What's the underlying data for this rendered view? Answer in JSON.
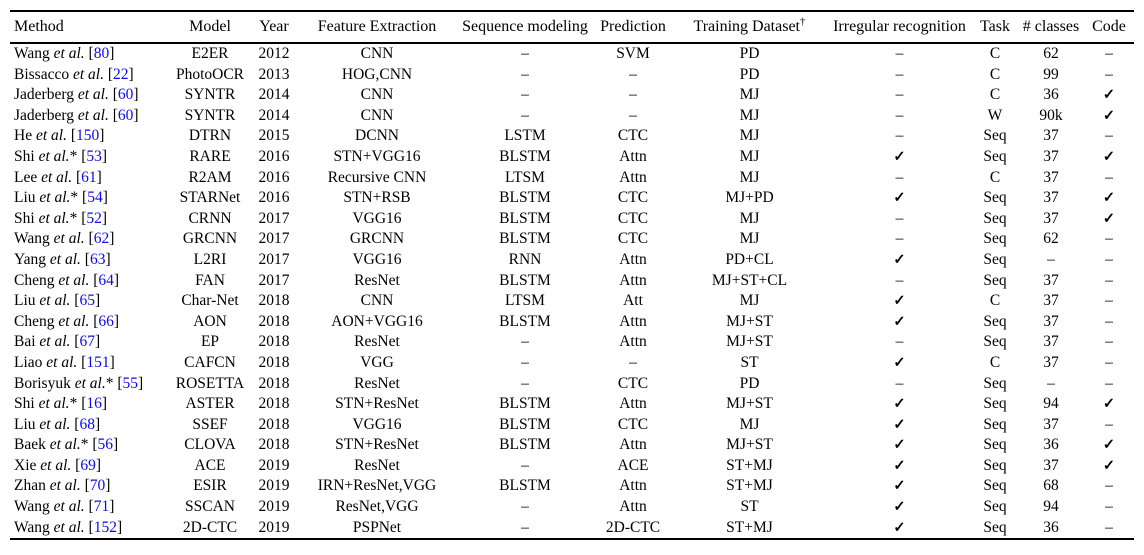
{
  "colors": {
    "citation": "#0b0beb",
    "text": "#000000",
    "rule": "#000000",
    "background": "#ffffff"
  },
  "table": {
    "etal_label": "et al.",
    "cite_open": "[",
    "cite_close": "]",
    "check_glyph": "✓",
    "dash_glyph": "–",
    "headers": [
      {
        "label": "Method"
      },
      {
        "label": "Model"
      },
      {
        "label": "Year"
      },
      {
        "label": "Feature Extraction"
      },
      {
        "label": "Sequence modeling"
      },
      {
        "label": "Prediction"
      },
      {
        "label": "Training Dataset",
        "sup": "†"
      },
      {
        "label": "Irregular recognition"
      },
      {
        "label": "Task"
      },
      {
        "label": "# classes"
      },
      {
        "label": "Code"
      }
    ],
    "rows": [
      {
        "author": "Wang",
        "star": "",
        "cite": "80",
        "model": "E2ER",
        "year": "2012",
        "feature": "CNN",
        "seq": "–",
        "pred": "SVM",
        "dataset": "PD",
        "irregular": "–",
        "task": "C",
        "classes": "62",
        "code": "–"
      },
      {
        "author": "Bissacco",
        "star": "",
        "cite": "22",
        "model": "PhotoOCR",
        "year": "2013",
        "feature": "HOG,CNN",
        "seq": "–",
        "pred": "–",
        "dataset": "PD",
        "irregular": "–",
        "task": "C",
        "classes": "99",
        "code": "–"
      },
      {
        "author": "Jaderberg",
        "star": "",
        "cite": "60",
        "model": "SYNTR",
        "year": "2014",
        "feature": "CNN",
        "seq": "–",
        "pred": "–",
        "dataset": "MJ",
        "irregular": "–",
        "task": "C",
        "classes": "36",
        "code": "✓"
      },
      {
        "author": "Jaderberg",
        "star": "",
        "cite": "60",
        "model": "SYNTR",
        "year": "2014",
        "feature": "CNN",
        "seq": "–",
        "pred": "–",
        "dataset": "MJ",
        "irregular": "–",
        "task": "W",
        "classes": "90k",
        "code": "✓"
      },
      {
        "author": "He",
        "star": "",
        "cite": "150",
        "model": "DTRN",
        "year": "2015",
        "feature": "DCNN",
        "seq": "LSTM",
        "pred": "CTC",
        "dataset": "MJ",
        "irregular": "–",
        "task": "Seq",
        "classes": "37",
        "code": "–"
      },
      {
        "author": "Shi",
        "star": "*",
        "cite": "53",
        "model": "RARE",
        "year": "2016",
        "feature": "STN+VGG16",
        "seq": "BLSTM",
        "pred": "Attn",
        "dataset": "MJ",
        "irregular": "✓",
        "task": "Seq",
        "classes": "37",
        "code": "✓"
      },
      {
        "author": "Lee",
        "star": "",
        "cite": "61",
        "model": "R2AM",
        "year": "2016",
        "feature": "Recursive CNN",
        "seq": "LTSM",
        "pred": "Attn",
        "dataset": "MJ",
        "irregular": "–",
        "task": "C",
        "classes": "37",
        "code": "–"
      },
      {
        "author": "Liu",
        "star": "*",
        "cite": "54",
        "model": "STARNet",
        "year": "2016",
        "feature": "STN+RSB",
        "seq": "BLSTM",
        "pred": "CTC",
        "dataset": "MJ+PD",
        "irregular": "✓",
        "task": "Seq",
        "classes": "37",
        "code": "✓"
      },
      {
        "author": "Shi",
        "star": "*",
        "cite": "52",
        "model": "CRNN",
        "year": "2017",
        "feature": "VGG16",
        "seq": "BLSTM",
        "pred": "CTC",
        "dataset": "MJ",
        "irregular": "–",
        "task": "Seq",
        "classes": "37",
        "code": "✓"
      },
      {
        "author": "Wang",
        "star": "",
        "cite": "62",
        "model": "GRCNN",
        "year": "2017",
        "feature": "GRCNN",
        "seq": "BLSTM",
        "pred": "CTC",
        "dataset": "MJ",
        "irregular": "–",
        "task": "Seq",
        "classes": "62",
        "code": "–"
      },
      {
        "author": "Yang",
        "star": "",
        "cite": "63",
        "model": "L2RI",
        "year": "2017",
        "feature": "VGG16",
        "seq": "RNN",
        "pred": "Attn",
        "dataset": "PD+CL",
        "irregular": "✓",
        "task": "Seq",
        "classes": "–",
        "code": "–"
      },
      {
        "author": "Cheng",
        "star": "",
        "cite": "64",
        "model": "FAN",
        "year": "2017",
        "feature": "ResNet",
        "seq": "BLSTM",
        "pred": "Attn",
        "dataset": "MJ+ST+CL",
        "irregular": "–",
        "task": "Seq",
        "classes": "37",
        "code": "–"
      },
      {
        "author": "Liu",
        "star": "",
        "cite": "65",
        "model": "Char-Net",
        "year": "2018",
        "feature": "CNN",
        "seq": "LTSM",
        "pred": "Att",
        "dataset": "MJ",
        "irregular": "✓",
        "task": "C",
        "classes": "37",
        "code": "–"
      },
      {
        "author": "Cheng",
        "star": "",
        "cite": "66",
        "model": "AON",
        "year": "2018",
        "feature": "AON+VGG16",
        "seq": "BLSTM",
        "pred": "Attn",
        "dataset": "MJ+ST",
        "irregular": "✓",
        "task": "Seq",
        "classes": "37",
        "code": "–"
      },
      {
        "author": "Bai",
        "star": "",
        "cite": "67",
        "model": "EP",
        "year": "2018",
        "feature": "ResNet",
        "seq": "–",
        "pred": "Attn",
        "dataset": "MJ+ST",
        "irregular": "–",
        "task": "Seq",
        "classes": "37",
        "code": "–"
      },
      {
        "author": "Liao",
        "star": "",
        "cite": "151",
        "model": "CAFCN",
        "year": "2018",
        "feature": "VGG",
        "seq": "–",
        "pred": "–",
        "dataset": "ST",
        "irregular": "✓",
        "task": "C",
        "classes": "37",
        "code": "–"
      },
      {
        "author": "Borisyuk",
        "star": "*",
        "cite": "55",
        "model": "ROSETTA",
        "year": "2018",
        "feature": "ResNet",
        "seq": "–",
        "pred": "CTC",
        "dataset": "PD",
        "irregular": "–",
        "task": "Seq",
        "classes": "–",
        "code": "–"
      },
      {
        "author": "Shi",
        "star": "*",
        "cite": "16",
        "model": "ASTER",
        "year": "2018",
        "feature": "STN+ResNet",
        "seq": "BLSTM",
        "pred": "Attn",
        "dataset": "MJ+ST",
        "irregular": "✓",
        "task": "Seq",
        "classes": "94",
        "code": "✓"
      },
      {
        "author": "Liu",
        "star": "",
        "cite": "68",
        "model": "SSEF",
        "year": "2018",
        "feature": "VGG16",
        "seq": "BLSTM",
        "pred": "CTC",
        "dataset": "MJ",
        "irregular": "✓",
        "task": "Seq",
        "classes": "37",
        "code": "–"
      },
      {
        "author": "Baek",
        "star": "*",
        "cite": "56",
        "model": "CLOVA",
        "year": "2018",
        "feature": "STN+ResNet",
        "seq": "BLSTM",
        "pred": "Attn",
        "dataset": "MJ+ST",
        "irregular": "✓",
        "task": "Seq",
        "classes": "36",
        "code": "✓"
      },
      {
        "author": "Xie",
        "star": "",
        "cite": "69",
        "model": "ACE",
        "year": "2019",
        "feature": "ResNet",
        "seq": "–",
        "pred": "ACE",
        "dataset": "ST+MJ",
        "irregular": "✓",
        "task": "Seq",
        "classes": "37",
        "code": "✓"
      },
      {
        "author": "Zhan",
        "star": "",
        "cite": "70",
        "model": "ESIR",
        "year": "2019",
        "feature": "IRN+ResNet,VGG",
        "seq": "BLSTM",
        "pred": "Attn",
        "dataset": "ST+MJ",
        "irregular": "✓",
        "task": "Seq",
        "classes": "68",
        "code": "–"
      },
      {
        "author": "Wang",
        "star": "",
        "cite": "71",
        "model": "SSCAN",
        "year": "2019",
        "feature": "ResNet,VGG",
        "seq": "–",
        "pred": "Attn",
        "dataset": "ST",
        "irregular": "✓",
        "task": "Seq",
        "classes": "94",
        "code": "–"
      },
      {
        "author": "Wang",
        "star": "",
        "cite": "152",
        "model": "2D-CTC",
        "year": "2019",
        "feature": "PSPNet",
        "seq": "–",
        "pred": "2D-CTC",
        "dataset": "ST+MJ",
        "irregular": "✓",
        "task": "Seq",
        "classes": "36",
        "code": "–"
      }
    ]
  }
}
